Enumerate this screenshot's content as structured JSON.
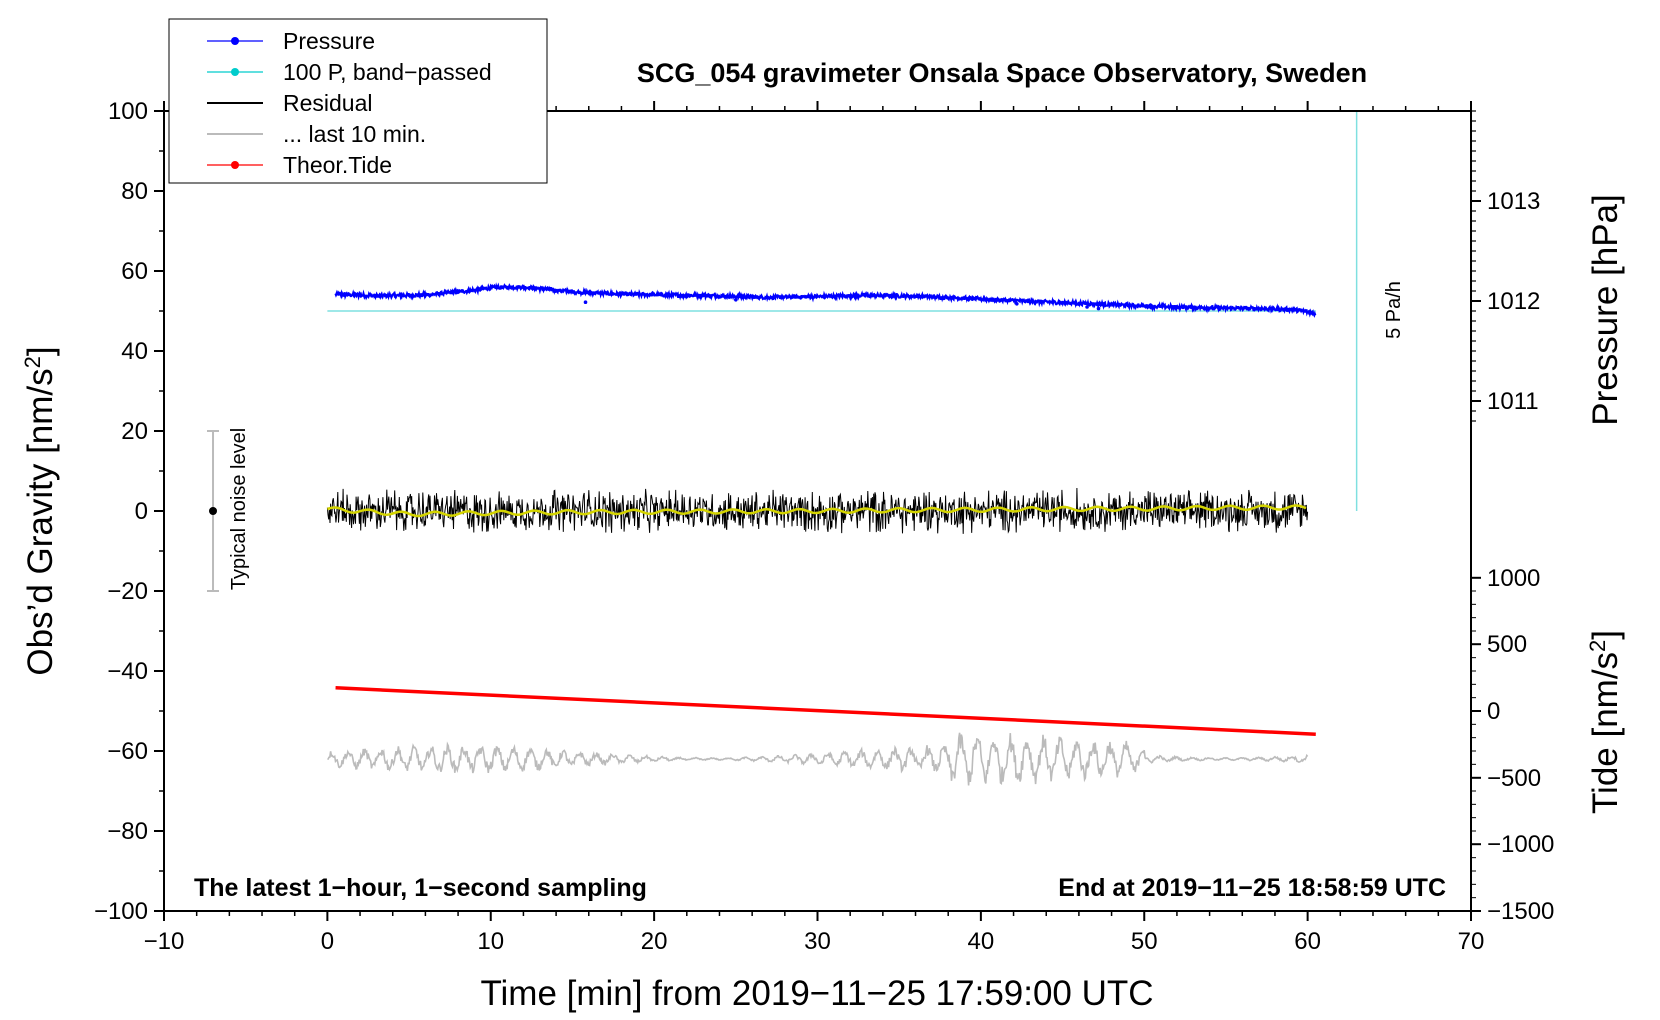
{
  "chart_data": {
    "type": "line",
    "title": "SCG_054 gravimeter Onsala Space Observatory, Sweden",
    "xlabel": "Time [min] from 2019−11−25 17:59:00 UTC",
    "ylabel_left_main": "Obs’d Gravity [nm/s",
    "ylabel_left_sup": "2",
    "ylabel_left_close": "]",
    "ylabel_right_pressure": "Pressure [hPa]",
    "ylabel_right_tide_main": "Tide [nm/s",
    "ylabel_right_tide_sup": "2",
    "ylabel_right_tide_close": "]",
    "xlim": [
      -10,
      70
    ],
    "ylim": [
      -100,
      100
    ],
    "x_ticks": [
      -10,
      0,
      10,
      20,
      30,
      40,
      50,
      60,
      70
    ],
    "x_tick_labels": [
      "−10",
      "0",
      "10",
      "20",
      "30",
      "40",
      "50",
      "60",
      "70"
    ],
    "y_ticks": [
      -100,
      -80,
      -60,
      -40,
      -20,
      0,
      20,
      40,
      60,
      80,
      100
    ],
    "y_tick_labels": [
      "−100",
      "−80",
      "−60",
      "−40",
      "−20",
      "0",
      "20",
      "40",
      "60",
      "80",
      "100"
    ],
    "pressure_axis": {
      "ticks": [
        1011,
        1012,
        1013
      ],
      "tick_labels": [
        "1011",
        "1012",
        "1013"
      ],
      "ticks_left_units": [
        27.5,
        52.5,
        77.5
      ]
    },
    "tide_axis": {
      "ticks": [
        -1500,
        -1000,
        -500,
        0,
        500,
        1000
      ],
      "tick_labels": [
        "−1500",
        "−1000",
        "−500",
        "0",
        "500",
        "1000"
      ],
      "ticks_left_units": [
        -100,
        -83.3,
        -66.7,
        -50,
        -33.3,
        -16.7
      ]
    },
    "legend": {
      "position": "top-left",
      "entries": [
        {
          "label": "Pressure",
          "color": "#0000ff",
          "marker": "dot"
        },
        {
          "label": "100 P, band−passed",
          "color": "#00cccc",
          "marker": "dot"
        },
        {
          "label": "Residual",
          "color": "#000000",
          "marker": "none"
        },
        {
          "label": "... last 10 min.",
          "color": "#bbbbbb",
          "marker": "none"
        },
        {
          "label": "Theor.Tide",
          "color": "#ff0000",
          "marker": "dot"
        }
      ]
    },
    "series": [
      {
        "name": "Pressure",
        "color": "#0000ff",
        "x": [
          0.5,
          3,
          6,
          9,
          10,
          11,
          12,
          13,
          15,
          18,
          21,
          24,
          27,
          30,
          33,
          36,
          39,
          42,
          45,
          48,
          51,
          54,
          57,
          59,
          60,
          60.5
        ],
        "y": [
          54.2,
          53.8,
          54.0,
          55.2,
          55.8,
          56.0,
          56.0,
          55.6,
          54.8,
          54.2,
          54.0,
          53.8,
          53.4,
          53.6,
          53.9,
          53.7,
          53.2,
          52.6,
          52.1,
          51.6,
          51.1,
          50.8,
          50.6,
          50.4,
          49.8,
          49.2
        ]
      },
      {
        "name": "100 P, band−passed",
        "color": "#00cccc",
        "x": [
          0,
          60.5
        ],
        "y": [
          50,
          50
        ]
      },
      {
        "name": "Residual",
        "color": "#000000",
        "x_range": [
          0,
          60
        ],
        "baseline": 0,
        "amplitude": 6
      },
      {
        "name": "Residual (smoothed)",
        "color": "#cccc00",
        "x": [
          0,
          5,
          10,
          15,
          20,
          25,
          30,
          35,
          40,
          45,
          50,
          55,
          60
        ],
        "y": [
          0.5,
          -0.8,
          -0.5,
          -0.3,
          -0.2,
          -0.1,
          0.0,
          0.2,
          0.3,
          0.5,
          0.6,
          0.8,
          0.9
        ]
      },
      {
        "name": "... last 10 min.",
        "color": "#bbbbbb",
        "x_range": [
          0,
          60
        ],
        "baseline": -62,
        "amplitude": 5
      },
      {
        "name": "Theor.Tide",
        "color": "#ff0000",
        "x": [
          0.5,
          60.5
        ],
        "y": [
          -44.2,
          -55.8
        ]
      }
    ],
    "annotations": {
      "noise_label": "Typical noise level",
      "noise_bar": {
        "x": -7,
        "y_low": -20,
        "y_high": 20,
        "center": 0
      },
      "scale_bar_label": "5 Pa/h",
      "scale_bar": {
        "x": 63,
        "y_low": 0,
        "y_high": 100
      },
      "bottom_left": "The latest 1−hour, 1−second sampling",
      "bottom_right": "End at 2019−11−25 18:58:59 UTC"
    }
  }
}
